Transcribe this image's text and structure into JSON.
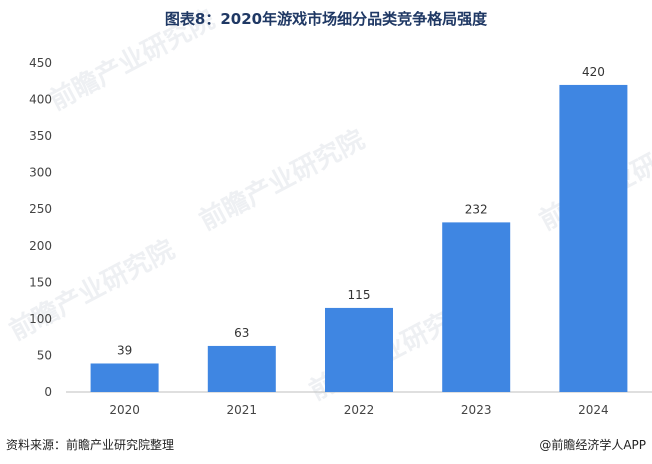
{
  "title": "图表8：2020年游戏市场细分品类竞争格局强度",
  "source": "资料来源：前瞻产业研究院整理",
  "brand": "@前瞻经济学人APP",
  "watermark": "前瞻产业研究院",
  "chart_data": {
    "type": "bar",
    "categories": [
      "2020",
      "2021",
      "2022",
      "2023",
      "2024"
    ],
    "values": [
      39,
      63,
      115,
      232,
      420
    ],
    "ylim": [
      0,
      450
    ],
    "yticks": [
      0,
      50,
      100,
      150,
      200,
      250,
      300,
      350,
      400,
      450
    ],
    "bar_color": "#3f86e2",
    "grid": false,
    "legend": "none"
  }
}
